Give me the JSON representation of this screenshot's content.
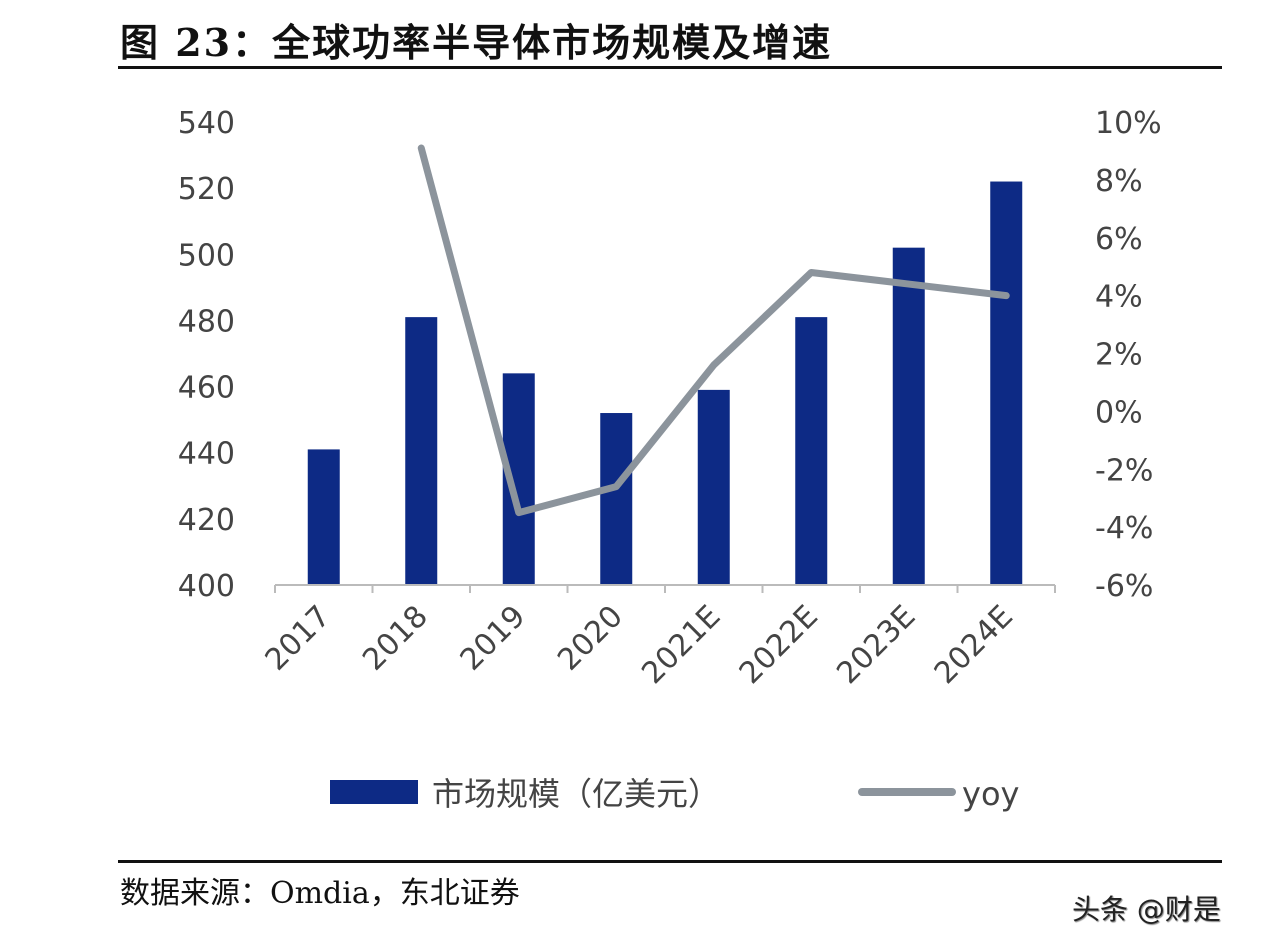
{
  "title": "图 23：全球功率半导体市场规模及增速",
  "source": "数据来源：Omdia，东北证券",
  "watermark": "头条 @财是",
  "chart_data": {
    "type": "bar+line",
    "categories": [
      "2017",
      "2018",
      "2019",
      "2020",
      "2021E",
      "2022E",
      "2023E",
      "2024E"
    ],
    "series": [
      {
        "name": "市场规模（亿美元）",
        "type": "bar",
        "axis": "left",
        "color": "#0d2a85",
        "values": [
          441,
          481,
          464,
          452,
          459,
          481,
          502,
          522
        ]
      },
      {
        "name": "yoy",
        "type": "line",
        "axis": "right",
        "color": "#8c949c",
        "values": [
          null,
          9.1,
          -3.5,
          -2.6,
          1.6,
          4.8,
          4.4,
          4.0
        ]
      }
    ],
    "left_axis": {
      "ylim": [
        400,
        540
      ],
      "ticks": [
        "400",
        "420",
        "440",
        "460",
        "480",
        "500",
        "520",
        "540"
      ]
    },
    "right_axis": {
      "ylim": [
        -6,
        10
      ],
      "ticks": [
        "-6%",
        "-4%",
        "-2%",
        "0%",
        "2%",
        "4%",
        "6%",
        "8%",
        "10%"
      ]
    },
    "grid": false,
    "legend_position": "bottom"
  }
}
